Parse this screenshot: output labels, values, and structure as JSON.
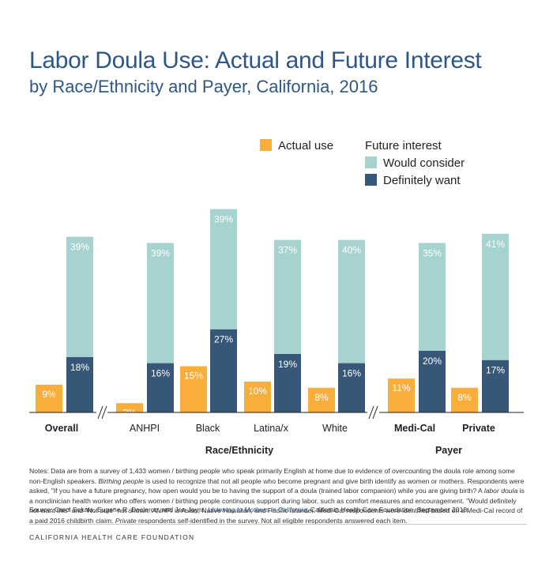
{
  "title": "Labor Doula Use: Actual and Future Interest",
  "subtitle": "by Race/Ethnicity and Payer, California, 2016",
  "notes": {
    "p1": "Notes: Data are from a survey of 1,433 women / birthing people who speak primarily English at home due to evidence of overcounting the doula role among some non-English speakers. ",
    "em1": "Birthing people",
    "p2": " is used to recognize that not all people who become pregnant and give birth identify as women or mothers. Respondents were asked, \"If you have a future pregnancy, how open would you be to having the support of a doula (trained labor companion) while you are giving birth? A ",
    "em2": "labor doula",
    "p3": " is a nonclinician health worker who offers women / birthing people continuous support during labor, such as comfort measures and encouragement. \"Would definitely not want this\" and \"Not sure\" not shown. ",
    "em3": "ANHPI",
    "p4": " is Asian, Native Hawaiian, and Pacific Islander. Medi-Cal respondents were identified based on a Medi-Cal record of a paid 2016 childbirth claim. ",
    "em4": "Private",
    "p5": " respondents self-identified in the survey. Not all eligible respondents answered each item."
  },
  "source": {
    "prefix": "Source: Carol Sakala, Eugene R. Declercq, and Jen Joynt, ",
    "link": "Listening to Mothers in California",
    "suffix": ", California Health Care Foundation, September 2018."
  },
  "footer": "CALIFORNIA HEALTH CARE FOUNDATION",
  "colors": {
    "actual": "#f9ad3b",
    "consider": "#a6d3cf",
    "want": "#375779",
    "title": "#2e5785"
  },
  "chart_data": {
    "type": "bar",
    "title": "Labor Doula Use: Actual and Future Interest",
    "legend": {
      "actual": "Actual use",
      "future_header": "Future interest",
      "consider": "Would consider",
      "want": "Definitely want"
    },
    "group_labels": {
      "race": "Race/Ethnicity",
      "payer": "Payer"
    },
    "categories": [
      "Overall",
      "ANHPI",
      "Black",
      "Latina/x",
      "White",
      "Medi-Cal",
      "Private"
    ],
    "bold_categories": [
      "Overall",
      "Medi-Cal",
      "Private"
    ],
    "series": [
      {
        "name": "Actual use",
        "values": [
          9,
          3,
          15,
          10,
          8,
          11,
          8
        ]
      },
      {
        "name": "Definitely want",
        "values": [
          18,
          16,
          27,
          19,
          16,
          20,
          17
        ]
      },
      {
        "name": "Would consider",
        "values": [
          39,
          39,
          39,
          37,
          40,
          35,
          41
        ]
      }
    ],
    "unit": "%"
  }
}
